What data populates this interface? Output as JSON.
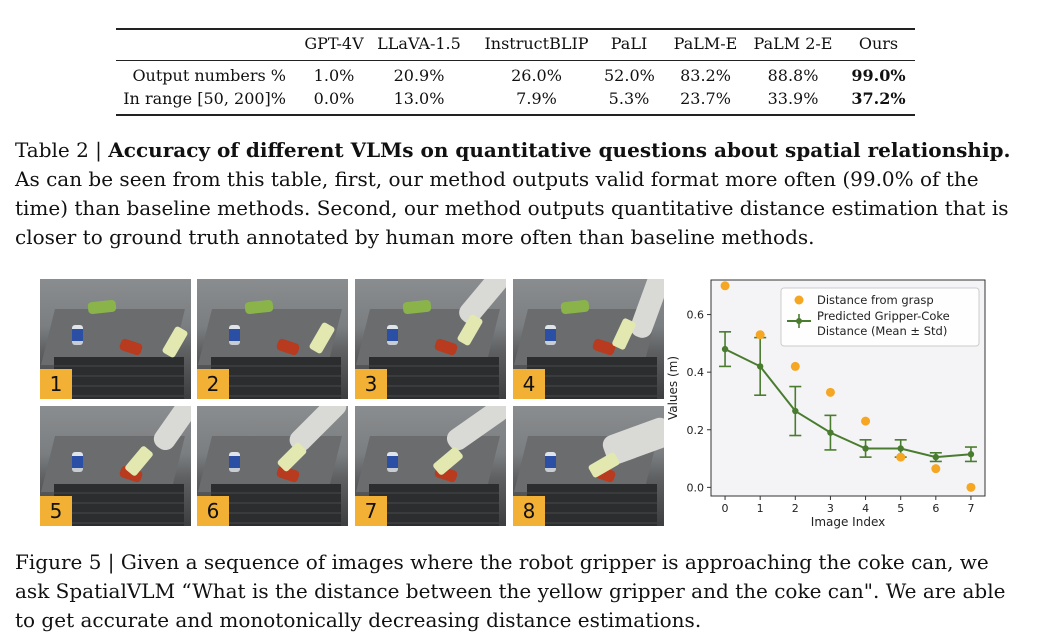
{
  "table": {
    "columns": [
      "GPT-4V",
      "LLaVA-1.5",
      "InstructBLIP",
      "PaLI",
      "PaLM-E",
      "PaLM 2-E",
      "Ours"
    ],
    "rows": [
      {
        "label": "Output numbers %",
        "values": [
          "1.0%",
          "20.9%",
          "26.0%",
          "52.0%",
          "83.2%",
          "88.8%",
          "99.0%"
        ]
      },
      {
        "label": "In range [50, 200]%",
        "values": [
          "0.0%",
          "13.0%",
          "7.9%",
          "5.3%",
          "23.7%",
          "33.9%",
          "37.2%"
        ]
      }
    ]
  },
  "table_caption": {
    "prefix": "Table 2 | ",
    "title": "Accuracy of different VLMs on quantitative questions about spatial relationship.",
    "body": " As can be seen from this table, first, our method outputs valid format more often (99.0% of the time) than baseline methods. Second, our method outputs quantitative distance estimation that is closer to ground truth annotated by human more often than baseline methods."
  },
  "images": {
    "labels": [
      "1",
      "2",
      "3",
      "4",
      "5",
      "6",
      "7",
      "8"
    ]
  },
  "chart_data": {
    "type": "scatter",
    "xlabel": "Image Index",
    "ylabel": "Values (m)",
    "x_ticks": [
      "0",
      "1",
      "2",
      "3",
      "4",
      "5",
      "6",
      "7"
    ],
    "y_ticks": [
      "0.0",
      "0.2",
      "0.4",
      "0.6"
    ],
    "xlim": [
      -0.4,
      7.4
    ],
    "ylim": [
      -0.03,
      0.72
    ],
    "legend_position": "top-right",
    "series": [
      {
        "name": "Distance from grasp",
        "kind": "scatter",
        "color": "#f5a623",
        "x": [
          0,
          1,
          2,
          3,
          4,
          5,
          6,
          7
        ],
        "y": [
          0.7,
          0.53,
          0.42,
          0.33,
          0.23,
          0.105,
          0.065,
          0.0
        ]
      },
      {
        "name": "Predicted Gripper-Coke Distance (Mean ± Std)",
        "name_lines": [
          "Predicted Gripper-Coke",
          "Distance (Mean ± Std)"
        ],
        "kind": "errorbar",
        "color": "#4a7c2f",
        "x": [
          0,
          1,
          2,
          3,
          4,
          5,
          6,
          7
        ],
        "y": [
          0.48,
          0.42,
          0.265,
          0.19,
          0.135,
          0.135,
          0.105,
          0.115
        ],
        "err": [
          0.06,
          0.1,
          0.085,
          0.06,
          0.03,
          0.03,
          0.015,
          0.025
        ]
      }
    ]
  },
  "figure_caption": {
    "text": "Figure 5 | Given a sequence of images where the robot gripper is approaching the coke can, we ask SpatialVLM “What is the distance between the yellow gripper and the coke can\". We are able to get accurate and monotonically decreasing distance estimations."
  }
}
